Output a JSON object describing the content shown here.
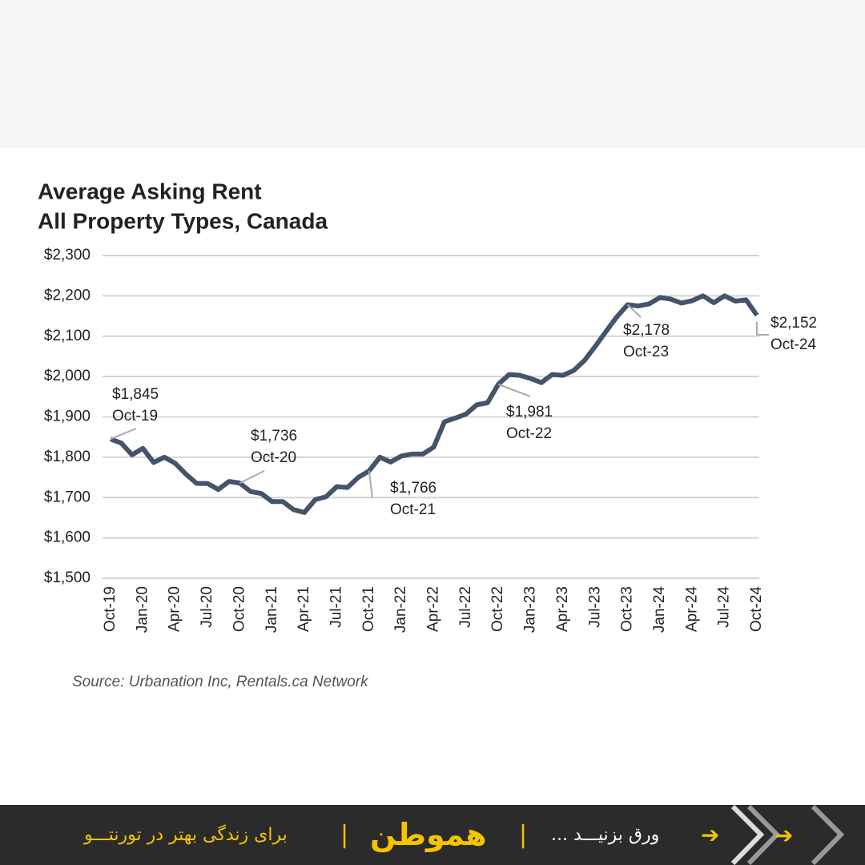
{
  "chart_data": {
    "type": "line",
    "title": [
      "Average Asking Rent",
      "All Property Types, Canada"
    ],
    "source": "Source: Urbanation Inc, Rentals.ca Network",
    "categories": [
      "Oct-19",
      null,
      null,
      "Jan-20",
      null,
      null,
      "Apr-20",
      null,
      null,
      "Jul-20",
      null,
      null,
      "Oct-20",
      null,
      null,
      "Jan-21",
      null,
      null,
      "Apr-21",
      null,
      null,
      "Jul-21",
      null,
      null,
      "Oct-21",
      null,
      null,
      "Jan-22",
      null,
      null,
      "Apr-22",
      null,
      null,
      "Jul-22",
      null,
      null,
      "Oct-22",
      null,
      null,
      "Jan-23",
      null,
      null,
      "Apr-23",
      null,
      null,
      "Jul-23",
      null,
      null,
      "Oct-23",
      null,
      null,
      "Jan-24",
      null,
      null,
      "Apr-24",
      null,
      null,
      "Jul-24",
      null,
      null,
      "Oct-24"
    ],
    "series": [
      {
        "name": "Average Asking Rent",
        "color": "#44546a",
        "values": [
          1845,
          1835,
          1806,
          1822,
          1787,
          1800,
          1785,
          1758,
          1735,
          1735,
          1720,
          1740,
          1736,
          1715,
          1710,
          1690,
          1690,
          1670,
          1663,
          1695,
          1702,
          1727,
          1725,
          1750,
          1766,
          1800,
          1788,
          1803,
          1808,
          1808,
          1825,
          1888,
          1897,
          1907,
          1930,
          1935,
          1981,
          2005,
          2003,
          1995,
          1985,
          2005,
          2003,
          2015,
          2040,
          2075,
          2112,
          2148,
          2178,
          2175,
          2180,
          2196,
          2192,
          2182,
          2188,
          2200,
          2183,
          2200,
          2187,
          2190,
          2152
        ]
      }
    ],
    "annotations": [
      {
        "value": 1845,
        "label": "$1,845",
        "date": "Oct-19"
      },
      {
        "value": 1736,
        "label": "$1,736",
        "date": "Oct-20"
      },
      {
        "value": 1766,
        "label": "$1,766",
        "date": "Oct-21"
      },
      {
        "value": 1981,
        "label": "$1,981",
        "date": "Oct-22"
      },
      {
        "value": 2178,
        "label": "$2,178",
        "date": "Oct-23"
      },
      {
        "value": 2152,
        "label": "$2,152",
        "date": "Oct-24"
      }
    ],
    "ylim": [
      1500,
      2300
    ],
    "yticks": [
      {
        "value": 1500,
        "label": "$1,500"
      },
      {
        "value": 1600,
        "label": "$1,600"
      },
      {
        "value": 1700,
        "label": "$1,700"
      },
      {
        "value": 1800,
        "label": "$1,800"
      },
      {
        "value": 1900,
        "label": "$1,900"
      },
      {
        "value": 2000,
        "label": "$2,000"
      },
      {
        "value": 2100,
        "label": "$2,100"
      },
      {
        "value": 2200,
        "label": "$2,200"
      },
      {
        "value": 2300,
        "label": "$2,300"
      }
    ],
    "grid": true
  },
  "footer": {
    "tagline": "برای زندگی بهتر در تورنتـــو",
    "logo": "هموطن",
    "swipe": "ورق بزنیـــد ..."
  }
}
